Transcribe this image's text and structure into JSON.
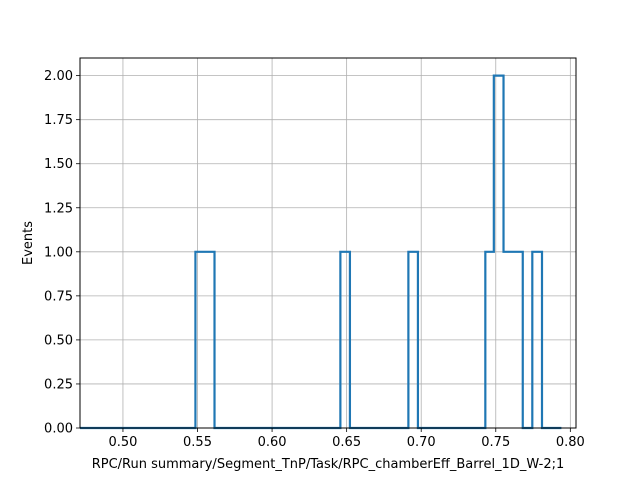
{
  "chart_data": {
    "type": "histogram-step",
    "title": "",
    "xlabel": "RPC/Run summary/Segment_TnP/Task/RPC_chamberEff_Barrel_1D_W-2;1",
    "ylabel": "Events",
    "xlim": [
      0.4712,
      0.8038
    ],
    "ylim": [
      0.0,
      2.1
    ],
    "grid": true,
    "legend": "none",
    "color": "#1f77b4",
    "xticks": [
      0.5,
      0.55,
      0.6,
      0.65,
      0.7,
      0.75,
      0.8
    ],
    "xtick_labels": [
      "0.50",
      "0.55",
      "0.60",
      "0.65",
      "0.70",
      "0.75",
      "0.80"
    ],
    "yticks": [
      0.0,
      0.25,
      0.5,
      0.75,
      1.0,
      1.25,
      1.5,
      1.75,
      2.0
    ],
    "ytick_labels": [
      "0.00",
      "0.25",
      "0.50",
      "0.75",
      "1.00",
      "1.25",
      "1.50",
      "1.75",
      "2.00"
    ],
    "bins": [
      {
        "x0": 0.4712,
        "x1": 0.5486,
        "count": 0
      },
      {
        "x0": 0.5486,
        "x1": 0.5614,
        "count": 1
      },
      {
        "x0": 0.5614,
        "x1": 0.6458,
        "count": 0
      },
      {
        "x0": 0.6458,
        "x1": 0.6522,
        "count": 1
      },
      {
        "x0": 0.6522,
        "x1": 0.6914,
        "count": 0
      },
      {
        "x0": 0.6914,
        "x1": 0.6978,
        "count": 1
      },
      {
        "x0": 0.6978,
        "x1": 0.743,
        "count": 0
      },
      {
        "x0": 0.743,
        "x1": 0.7487,
        "count": 1
      },
      {
        "x0": 0.7487,
        "x1": 0.7552,
        "count": 2
      },
      {
        "x0": 0.7552,
        "x1": 0.7681,
        "count": 1
      },
      {
        "x0": 0.7681,
        "x1": 0.7745,
        "count": 0
      },
      {
        "x0": 0.7745,
        "x1": 0.781,
        "count": 1
      },
      {
        "x0": 0.781,
        "x1": 0.794,
        "count": 0
      }
    ]
  }
}
